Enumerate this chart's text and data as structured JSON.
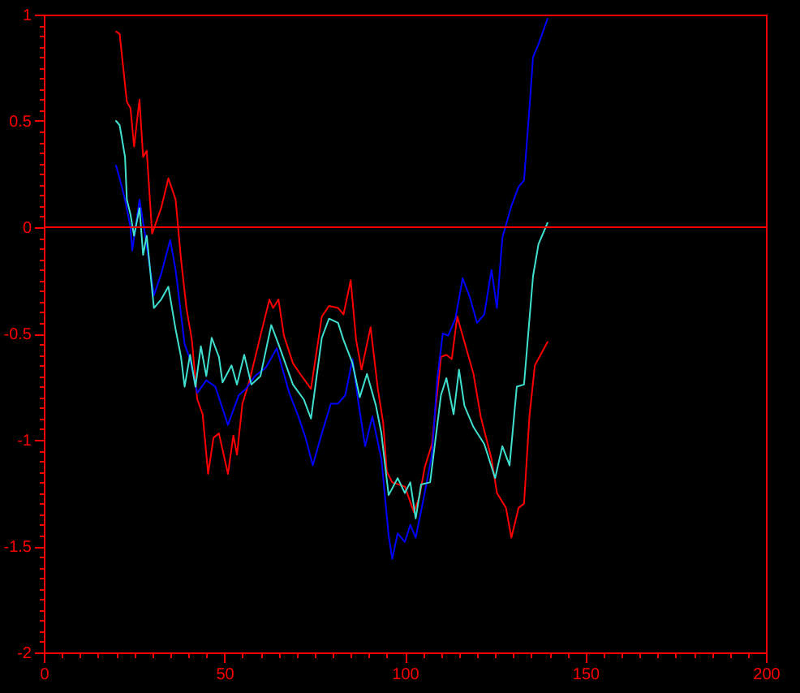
{
  "chart_data": {
    "type": "line",
    "series": [
      {
        "color": "#ff0000",
        "x": [
          20,
          21,
          23,
          24,
          25,
          26.5,
          27.5,
          28.5,
          30,
          32.5,
          34.5,
          36.5,
          38,
          39.5,
          41,
          42.5,
          44,
          45.5,
          47,
          48.5,
          51,
          52.5,
          53.5,
          55,
          57,
          60,
          62.5,
          63.5,
          65,
          66.5,
          69,
          71,
          74,
          77,
          79,
          81.5,
          83,
          85,
          86.5,
          88,
          90.5,
          92.5,
          94,
          95,
          96.5,
          100,
          102.5,
          104,
          105.5,
          107.5,
          110,
          111.5,
          113,
          114.5,
          116,
          119,
          121,
          124,
          125.5,
          128,
          129.5,
          131.5,
          133,
          134.5,
          136,
          139.5
        ],
        "values": [
          0.92,
          0.91,
          0.59,
          0.56,
          0.38,
          0.6,
          0.33,
          0.36,
          -0.03,
          0.09,
          0.23,
          0.13,
          -0.15,
          -0.38,
          -0.53,
          -0.81,
          -0.88,
          -1.16,
          -0.99,
          -0.97,
          -1.16,
          -0.98,
          -1.07,
          -0.83,
          -0.72,
          -0.51,
          -0.34,
          -0.38,
          -0.34,
          -0.51,
          -0.64,
          -0.69,
          -0.76,
          -0.42,
          -0.37,
          -0.38,
          -0.41,
          -0.25,
          -0.53,
          -0.67,
          -0.47,
          -0.76,
          -0.92,
          -1.15,
          -1.2,
          -1.22,
          -1.34,
          -1.27,
          -1.13,
          -1.02,
          -0.61,
          -0.6,
          -0.62,
          -0.42,
          -0.51,
          -0.69,
          -0.89,
          -1.09,
          -1.25,
          -1.32,
          -1.46,
          -1.32,
          -1.3,
          -0.89,
          -0.65,
          -0.54
        ]
      },
      {
        "color": "#0000ff",
        "x": [
          20,
          21,
          22.5,
          24,
          24.5,
          26.5,
          28,
          30.5,
          32.5,
          35,
          36.5,
          39,
          40.5,
          42.5,
          45,
          47.5,
          51,
          54,
          56,
          58.5,
          61.5,
          64.5,
          66,
          68,
          70.5,
          72.5,
          74.5,
          77,
          79.5,
          81.5,
          83.5,
          85.5,
          87,
          89,
          91,
          93.5,
          95.5,
          96.5,
          98,
          100,
          101.5,
          103,
          105.5,
          107.5,
          109,
          110.5,
          112,
          114,
          116,
          118,
          120,
          122,
          124,
          125.5,
          127,
          129.5,
          131.5,
          133,
          134.5,
          135.5,
          137,
          139.5
        ],
        "values": [
          0.29,
          0.23,
          0.13,
          0,
          -0.11,
          0.13,
          -0.03,
          -0.32,
          -0.22,
          -0.06,
          -0.2,
          -0.55,
          -0.62,
          -0.78,
          -0.72,
          -0.75,
          -0.93,
          -0.79,
          -0.76,
          -0.7,
          -0.66,
          -0.57,
          -0.66,
          -0.78,
          -0.89,
          -0.99,
          -1.12,
          -0.97,
          -0.83,
          -0.83,
          -0.79,
          -0.62,
          -0.81,
          -1.03,
          -0.89,
          -1.09,
          -1.45,
          -1.56,
          -1.44,
          -1.48,
          -1.4,
          -1.46,
          -1.25,
          -1.07,
          -0.71,
          -0.5,
          -0.51,
          -0.43,
          -0.24,
          -0.33,
          -0.45,
          -0.41,
          -0.2,
          -0.38,
          -0.05,
          0.1,
          0.19,
          0.22,
          0.56,
          0.8,
          0.86,
          0.98
        ]
      },
      {
        "color": "#40e0d0",
        "x": [
          20,
          21,
          22.5,
          23,
          24,
          25,
          26.5,
          27.5,
          28.5,
          30.5,
          32.5,
          34.5,
          36.5,
          38,
          39,
          40.5,
          42,
          43.5,
          45,
          46.5,
          48.5,
          49.5,
          52,
          53.5,
          55.5,
          57.5,
          60,
          63,
          65,
          69,
          72,
          74,
          77,
          79,
          81.5,
          83,
          85.5,
          87.5,
          89.5,
          92,
          93.5,
          95.5,
          98,
          100,
          101.5,
          103,
          104.5,
          107,
          110,
          111.5,
          113.5,
          115,
          116.5,
          119,
          122,
          125,
          127,
          129,
          131,
          133,
          135.5,
          137,
          139.5
        ],
        "values": [
          0.5,
          0.48,
          0.33,
          0.13,
          0.06,
          -0.04,
          0.09,
          -0.13,
          -0.04,
          -0.38,
          -0.34,
          -0.28,
          -0.48,
          -0.61,
          -0.75,
          -0.6,
          -0.75,
          -0.56,
          -0.7,
          -0.52,
          -0.61,
          -0.73,
          -0.65,
          -0.74,
          -0.6,
          -0.74,
          -0.7,
          -0.46,
          -0.55,
          -0.74,
          -0.81,
          -0.9,
          -0.52,
          -0.43,
          -0.45,
          -0.53,
          -0.64,
          -0.8,
          -0.69,
          -0.84,
          -0.97,
          -1.26,
          -1.18,
          -1.25,
          -1.2,
          -1.37,
          -1.21,
          -1.2,
          -0.79,
          -0.71,
          -0.88,
          -0.67,
          -0.84,
          -0.94,
          -1.02,
          -1.18,
          -1.03,
          -1.12,
          -0.75,
          -0.74,
          -0.23,
          -0.08,
          0.02
        ]
      }
    ],
    "xlim": [
      0,
      200
    ],
    "ylim": [
      -2,
      1
    ],
    "xticks": [
      0,
      {
        "value": 5,
        "label": null
      },
      {
        "value": 10,
        "label": null
      },
      {
        "value": 15,
        "label": null
      },
      {
        "value": 20,
        "label": null
      },
      {
        "value": 25,
        "label": null
      },
      {
        "value": 30,
        "label": null
      },
      {
        "value": 35,
        "label": null
      },
      {
        "value": 40,
        "label": null
      },
      {
        "value": 45,
        "label": null
      },
      50,
      {
        "value": 55,
        "label": null
      },
      {
        "value": 60,
        "label": null
      },
      {
        "value": 65,
        "label": null
      },
      {
        "value": 70,
        "label": null
      },
      {
        "value": 75,
        "label": null
      },
      {
        "value": 80,
        "label": null
      },
      {
        "value": 85,
        "label": null
      },
      {
        "value": 90,
        "label": null
      },
      {
        "value": 95,
        "label": null
      },
      100,
      {
        "value": 105,
        "label": null
      },
      {
        "value": 110,
        "label": null
      },
      {
        "value": 115,
        "label": null
      },
      {
        "value": 120,
        "label": null
      },
      {
        "value": 125,
        "label": null
      },
      {
        "value": 130,
        "label": null
      },
      {
        "value": 135,
        "label": null
      },
      {
        "value": 140,
        "label": null
      },
      {
        "value": 145,
        "label": null
      },
      150,
      {
        "value": 155,
        "label": null
      },
      {
        "value": 160,
        "label": null
      },
      {
        "value": 165,
        "label": null
      },
      {
        "value": 170,
        "label": null
      },
      {
        "value": 175,
        "label": null
      },
      {
        "value": 180,
        "label": null
      },
      {
        "value": 185,
        "label": null
      },
      {
        "value": 190,
        "label": null
      },
      {
        "value": 195,
        "label": null
      },
      200
    ],
    "yticks": [
      -2,
      {
        "value": -1.95,
        "label": null
      },
      {
        "value": -1.9,
        "label": null
      },
      {
        "value": -1.85,
        "label": null
      },
      {
        "value": -1.8,
        "label": null
      },
      {
        "value": -1.75,
        "label": null
      },
      {
        "value": -1.7,
        "label": null
      },
      {
        "value": -1.65,
        "label": null
      },
      {
        "value": -1.6,
        "label": null
      },
      {
        "value": -1.55,
        "label": null
      },
      -1.5,
      {
        "value": -1.45,
        "label": null
      },
      {
        "value": -1.4,
        "label": null
      },
      {
        "value": -1.35,
        "label": null
      },
      {
        "value": -1.3,
        "label": null
      },
      {
        "value": -1.25,
        "label": null
      },
      {
        "value": -1.2,
        "label": null
      },
      {
        "value": -1.15,
        "label": null
      },
      {
        "value": -1.1,
        "label": null
      },
      {
        "value": -1.05,
        "label": null
      },
      -1,
      {
        "value": -0.95,
        "label": null
      },
      {
        "value": -0.9,
        "label": null
      },
      {
        "value": -0.85,
        "label": null
      },
      {
        "value": -0.8,
        "label": null
      },
      {
        "value": -0.75,
        "label": null
      },
      {
        "value": -0.7,
        "label": null
      },
      {
        "value": -0.65,
        "label": null
      },
      {
        "value": -0.6,
        "label": null
      },
      {
        "value": -0.55,
        "label": null
      },
      -0.5,
      {
        "value": -0.45,
        "label": null
      },
      {
        "value": -0.4,
        "label": null
      },
      {
        "value": -0.35,
        "label": null
      },
      {
        "value": -0.3,
        "label": null
      },
      {
        "value": -0.25,
        "label": null
      },
      {
        "value": -0.2,
        "label": null
      },
      {
        "value": -0.15,
        "label": null
      },
      {
        "value": -0.1,
        "label": null
      },
      {
        "value": -0.05,
        "label": null
      },
      0,
      {
        "value": 0.05,
        "label": null
      },
      {
        "value": 0.1,
        "label": null
      },
      {
        "value": 0.15,
        "label": null
      },
      {
        "value": 0.2,
        "label": null
      },
      {
        "value": 0.25,
        "label": null
      },
      {
        "value": 0.3,
        "label": null
      },
      {
        "value": 0.35,
        "label": null
      },
      {
        "value": 0.4,
        "label": null
      },
      {
        "value": 0.45,
        "label": null
      },
      0.5,
      {
        "value": 0.55,
        "label": null
      },
      {
        "value": 0.6,
        "label": null
      },
      {
        "value": 0.65,
        "label": null
      },
      {
        "value": 0.7,
        "label": null
      },
      {
        "value": 0.75,
        "label": null
      },
      {
        "value": 0.8,
        "label": null
      },
      {
        "value": 0.85,
        "label": null
      },
      {
        "value": 0.9,
        "label": null
      },
      {
        "value": 0.95,
        "label": null
      },
      1
    ],
    "ref_lines": [
      {
        "axis": "y",
        "value": 0,
        "color": "#ff0000"
      }
    ],
    "grid": false,
    "legend": false,
    "line_style": "solid"
  }
}
